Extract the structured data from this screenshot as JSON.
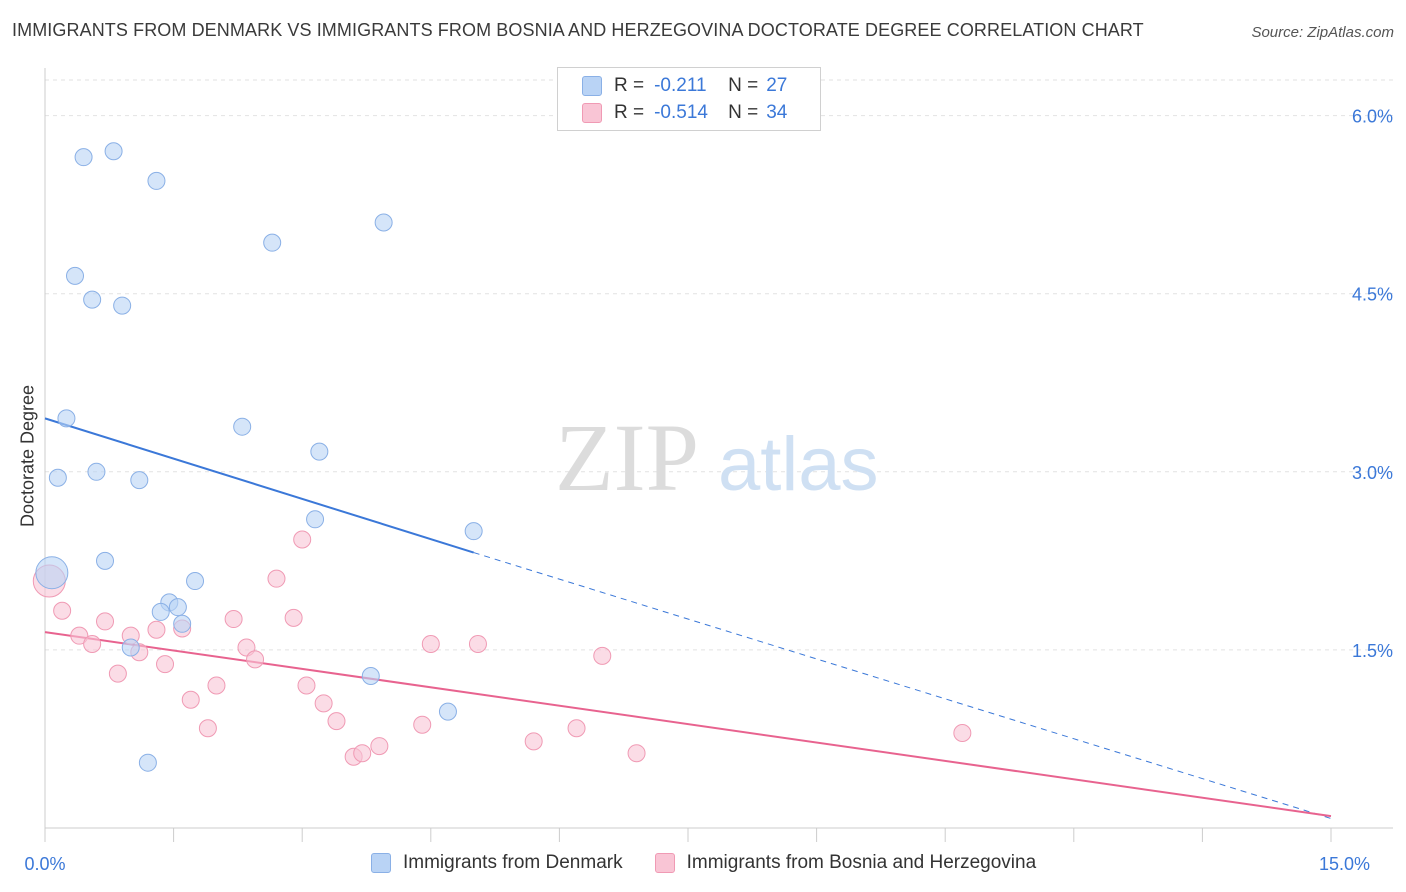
{
  "title": "IMMIGRANTS FROM DENMARK VS IMMIGRANTS FROM BOSNIA AND HERZEGOVINA DOCTORATE DEGREE CORRELATION CHART",
  "source": "Source: ZipAtlas.com",
  "watermark": {
    "zip": "ZIP",
    "atlas": "atlas"
  },
  "legend": {
    "rows": [
      {
        "r_label": "R =",
        "r_value": "-0.211",
        "n_label": "N =",
        "n_value": "27",
        "fill": "#b9d3f5",
        "stroke": "#8ab0e6"
      },
      {
        "r_label": "R =",
        "r_value": "-0.514",
        "n_label": "N =",
        "n_value": "34",
        "fill": "#f9c5d5",
        "stroke": "#f09ab4"
      }
    ]
  },
  "bottom_legend": [
    {
      "label": "Immigrants from Denmark",
      "fill": "#b9d3f5",
      "stroke": "#8ab0e6"
    },
    {
      "label": "Immigrants from Bosnia and Herzegovina",
      "fill": "#f9c5d5",
      "stroke": "#f09ab4"
    }
  ],
  "chart_data": {
    "type": "scatter",
    "xlabel": "",
    "ylabel": "Doctorate Degree",
    "xlim": [
      0,
      15
    ],
    "ylim": [
      0,
      6.3
    ],
    "x_tick_labels": [
      "0.0%",
      "15.0%"
    ],
    "y_ticks": [
      1.5,
      3.0,
      4.5,
      6.0
    ],
    "y_tick_labels": [
      "1.5%",
      "3.0%",
      "4.5%",
      "6.0%"
    ],
    "grid": true,
    "legend_position": "top-center",
    "series": [
      {
        "name": "Immigrants from Denmark",
        "color": "#3b78d8",
        "point_fill": "rgba(185,211,245,0.6)",
        "point_stroke": "#8ab0e6",
        "points": [
          [
            0.45,
            5.65
          ],
          [
            0.8,
            5.7
          ],
          [
            1.3,
            5.45
          ],
          [
            3.95,
            5.1
          ],
          [
            2.65,
            4.93
          ],
          [
            0.35,
            4.65
          ],
          [
            0.55,
            4.45
          ],
          [
            0.9,
            4.4
          ],
          [
            0.25,
            3.45
          ],
          [
            2.3,
            3.38
          ],
          [
            3.2,
            3.17
          ],
          [
            0.15,
            2.95
          ],
          [
            0.6,
            3.0
          ],
          [
            1.1,
            2.93
          ],
          [
            3.15,
            2.6
          ],
          [
            5.0,
            2.5
          ],
          [
            0.7,
            2.25
          ],
          [
            1.75,
            2.08
          ],
          [
            1.45,
            1.9
          ],
          [
            1.55,
            1.86
          ],
          [
            1.35,
            1.82
          ],
          [
            1.6,
            1.72
          ],
          [
            1.0,
            1.52
          ],
          [
            3.8,
            1.28
          ],
          [
            4.7,
            0.98
          ],
          [
            1.2,
            0.55
          ],
          [
            0.08,
            2.15
          ]
        ],
        "trend": {
          "x": [
            0,
            5.0
          ],
          "y": [
            3.45,
            2.32
          ]
        },
        "trend_extension": {
          "x": [
            5.0,
            15.0
          ],
          "y": [
            2.32,
            0.08
          ]
        }
      },
      {
        "name": "Immigrants from Bosnia and Herzegovina",
        "color": "#e8638f",
        "point_fill": "rgba(249,197,213,0.6)",
        "point_stroke": "#f09ab4",
        "points": [
          [
            0.2,
            1.83
          ],
          [
            0.4,
            1.62
          ],
          [
            0.55,
            1.55
          ],
          [
            0.7,
            1.74
          ],
          [
            0.85,
            1.3
          ],
          [
            1.0,
            1.62
          ],
          [
            1.1,
            1.48
          ],
          [
            1.3,
            1.67
          ],
          [
            1.4,
            1.38
          ],
          [
            1.6,
            1.68
          ],
          [
            1.7,
            1.08
          ],
          [
            1.9,
            0.84
          ],
          [
            2.0,
            1.2
          ],
          [
            2.2,
            1.76
          ],
          [
            2.35,
            1.52
          ],
          [
            2.45,
            1.42
          ],
          [
            2.7,
            2.1
          ],
          [
            2.9,
            1.77
          ],
          [
            3.05,
            1.2
          ],
          [
            3.25,
            1.05
          ],
          [
            3.4,
            0.9
          ],
          [
            3.6,
            0.6
          ],
          [
            3.7,
            0.63
          ],
          [
            3.9,
            0.69
          ],
          [
            4.4,
            0.87
          ],
          [
            4.5,
            1.55
          ],
          [
            5.05,
            1.55
          ],
          [
            5.7,
            0.73
          ],
          [
            6.2,
            0.84
          ],
          [
            6.5,
            1.45
          ],
          [
            6.9,
            0.63
          ],
          [
            10.7,
            0.8
          ],
          [
            3.0,
            2.43
          ],
          [
            0.05,
            2.08
          ]
        ],
        "trend": {
          "x": [
            0,
            15.0
          ],
          "y": [
            1.65,
            0.1
          ]
        }
      }
    ]
  }
}
